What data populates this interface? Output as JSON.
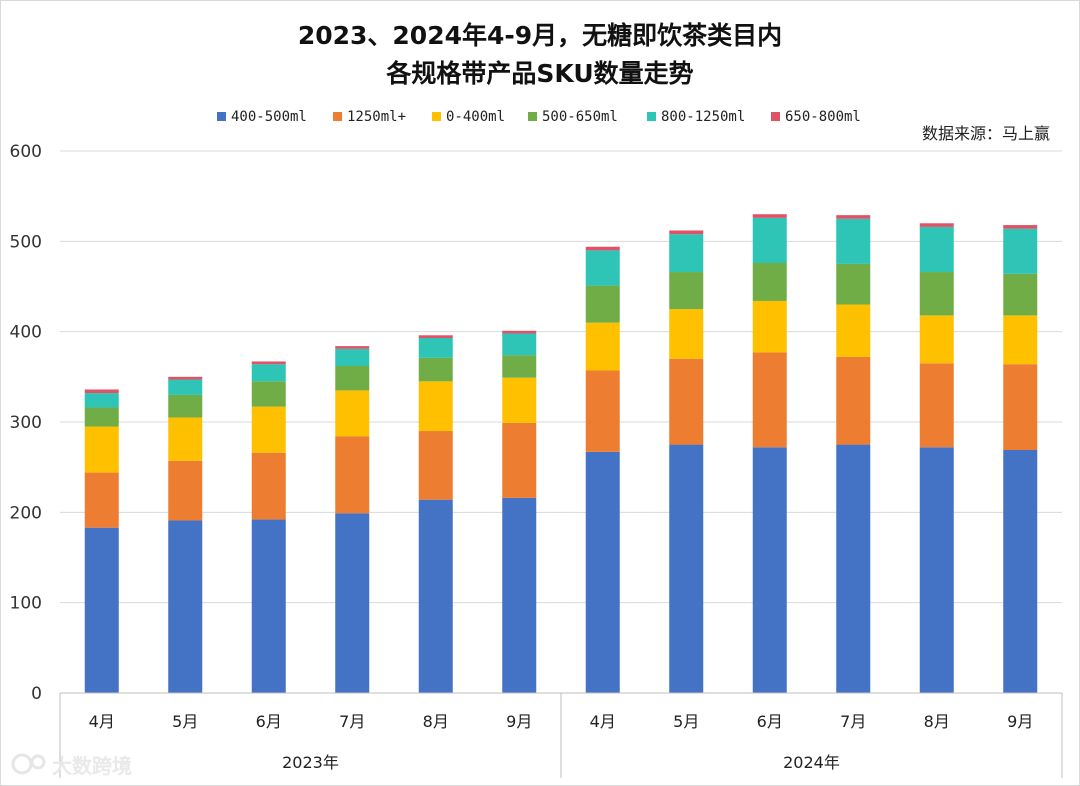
{
  "chart_data": {
    "type": "bar",
    "stacked": true,
    "title_lines": [
      "2023、2024年4-9月，无糖即饮茶类目内",
      "各规格带产品SKU数量走势"
    ],
    "source": "数据来源：马上赢",
    "watermark": "大数跨境",
    "ylim": [
      0,
      600
    ],
    "yticks": [
      0,
      100,
      200,
      300,
      400,
      500,
      600
    ],
    "ytick_labels": [
      "0",
      "100",
      "200",
      "300",
      "400",
      "500",
      "600"
    ],
    "groups": [
      {
        "label": "2023年",
        "categories": [
          "4月",
          "5月",
          "6月",
          "7月",
          "8月",
          "9月"
        ]
      },
      {
        "label": "2024年",
        "categories": [
          "4月",
          "5月",
          "6月",
          "7月",
          "8月",
          "9月"
        ]
      }
    ],
    "series": [
      {
        "name": "400-500ml",
        "color": "#4472C4",
        "values": [
          183,
          191,
          192,
          199,
          214,
          216,
          267,
          275,
          272,
          275,
          272,
          269
        ]
      },
      {
        "name": "1250ml+",
        "color": "#ED7D31",
        "values": [
          61,
          66,
          74,
          85,
          76,
          83,
          90,
          95,
          105,
          97,
          93,
          95
        ]
      },
      {
        "name": "0-400ml",
        "color": "#FFC000",
        "values": [
          51,
          48,
          51,
          51,
          55,
          50,
          53,
          55,
          57,
          58,
          53,
          54
        ]
      },
      {
        "name": "500-650ml",
        "color": "#70AD47",
        "values": [
          21,
          25,
          28,
          27,
          26,
          25,
          41,
          41,
          42,
          45,
          48,
          46
        ]
      },
      {
        "name": "800-1250ml",
        "color": "#2EC4B6",
        "values": [
          16,
          17,
          19,
          19,
          22,
          24,
          39,
          42,
          50,
          50,
          50,
          50
        ]
      },
      {
        "name": "650-800ml",
        "color": "#E05266",
        "values": [
          4,
          3,
          3,
          3,
          3,
          3,
          4,
          4,
          4,
          4,
          4,
          4
        ]
      }
    ]
  }
}
